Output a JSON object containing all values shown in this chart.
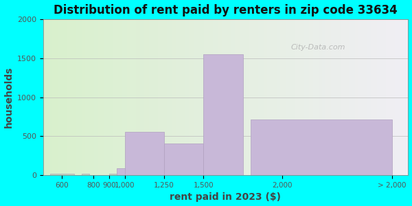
{
  "title": "Distribution of rent paid by renters in zip code 33634",
  "xlabel": "rent paid in 2023 ($)",
  "ylabel": "households",
  "bar_centers": [
    600,
    750,
    925,
    1000,
    1125,
    1375,
    1625,
    2250
  ],
  "bar_heights": [
    20,
    20,
    20,
    90,
    560,
    410,
    1550,
    710
  ],
  "bar_widths": [
    150,
    50,
    50,
    100,
    250,
    250,
    250,
    900
  ],
  "bar_colors": [
    "#c0dab8",
    "#c0dab8",
    "#c0dab8",
    "#c8b8d8",
    "#c8b8d8",
    "#c8b8d8",
    "#c8b8d8",
    "#c8b8d8"
  ],
  "ylim": [
    0,
    2000
  ],
  "xlim": [
    480,
    2800
  ],
  "xtick_positions": [
    600,
    800,
    900,
    1000,
    1250,
    1500,
    2000,
    2700
  ],
  "xtick_labels": [
    "600",
    "800",
    "900",
    "1,000",
    "1,250",
    "1,500",
    "2,000",
    "> 2,000"
  ],
  "ytick_positions": [
    0,
    500,
    1000,
    1500,
    2000
  ],
  "ytick_labels": [
    "0",
    "500",
    "1000",
    "1500",
    "2000"
  ],
  "background_color": "#00ffff",
  "plot_bg_gradient_left": "#d8f0cc",
  "plot_bg_gradient_right": "#f0eef4",
  "watermark": "City-Data.com",
  "title_fontsize": 12,
  "axis_label_fontsize": 10,
  "split_x": 1000
}
